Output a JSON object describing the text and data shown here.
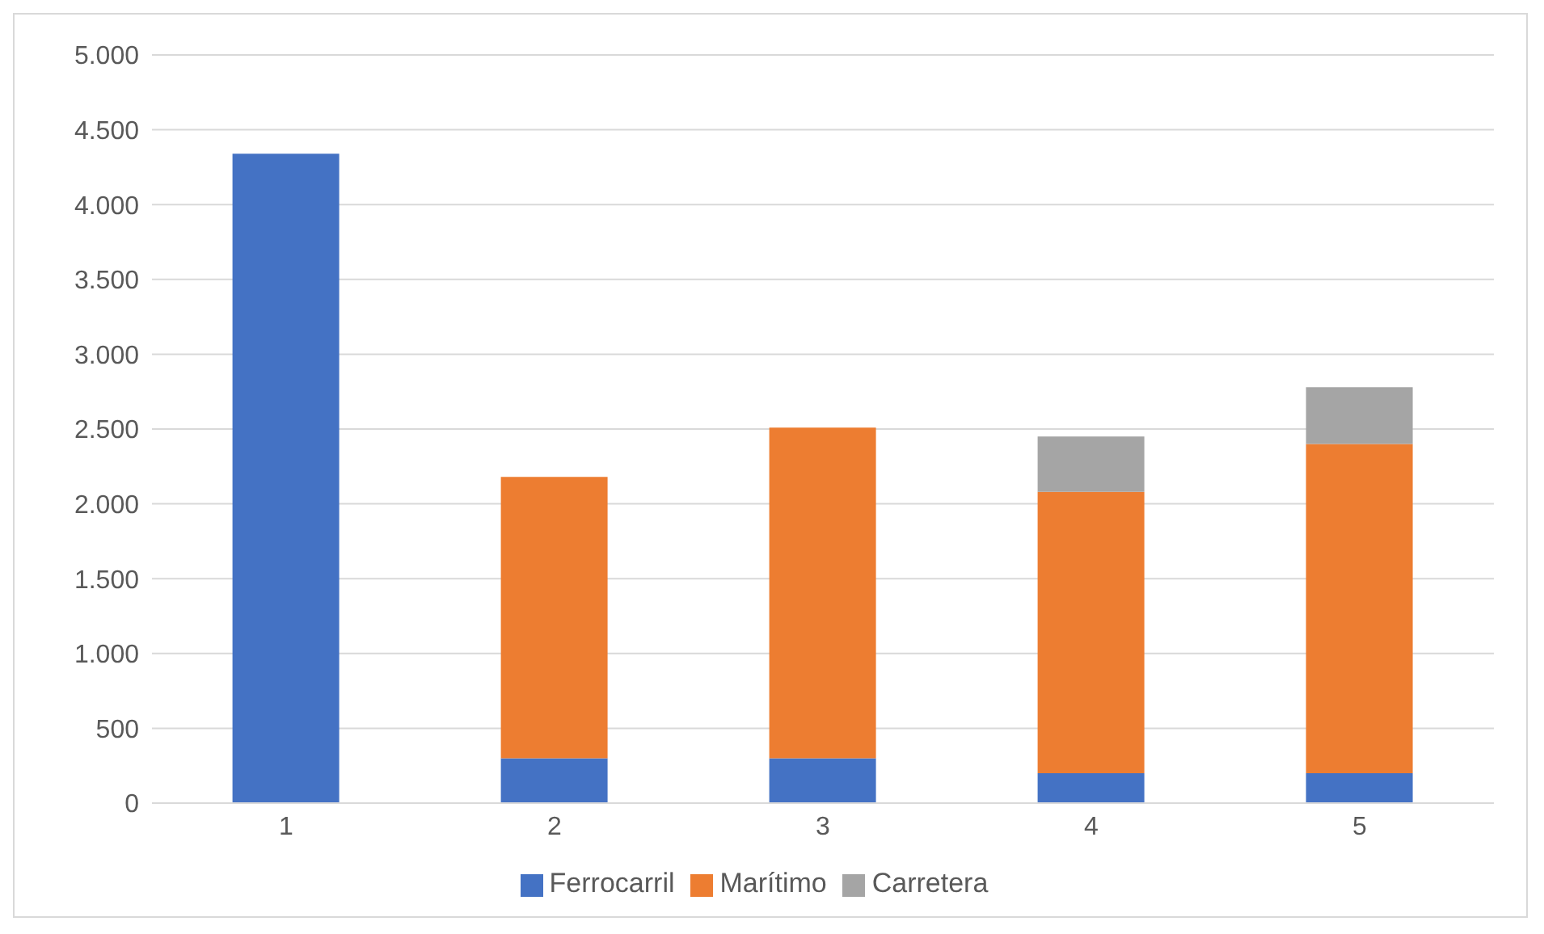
{
  "chart_data": {
    "type": "bar",
    "stacked": true,
    "categories": [
      "1",
      "2",
      "3",
      "4",
      "5"
    ],
    "series": [
      {
        "name": "Ferrocarril",
        "color": "#4472c4",
        "values": [
          4340,
          300,
          300,
          200,
          200
        ]
      },
      {
        "name": "Marítimo",
        "color": "#ed7d31",
        "values": [
          null,
          1880,
          2210,
          1880,
          2200
        ]
      },
      {
        "name": "Carretera",
        "color": "#a5a5a5",
        "values": [
          null,
          null,
          null,
          370,
          380
        ]
      }
    ],
    "ylim": [
      0,
      5000
    ],
    "yticks": [
      {
        "value": 0,
        "label": "0"
      },
      {
        "value": 500,
        "label": "500"
      },
      {
        "value": 1000,
        "label": "1.000"
      },
      {
        "value": 1500,
        "label": "1.500"
      },
      {
        "value": 2000,
        "label": "2.000"
      },
      {
        "value": 2500,
        "label": "2.500"
      },
      {
        "value": 3000,
        "label": "3.000"
      },
      {
        "value": 3500,
        "label": "3.500"
      },
      {
        "value": 4000,
        "label": "4.000"
      },
      {
        "value": 4500,
        "label": "4.500"
      },
      {
        "value": 5000,
        "label": "5.000"
      }
    ],
    "grid": "y",
    "legend": "bottom"
  }
}
